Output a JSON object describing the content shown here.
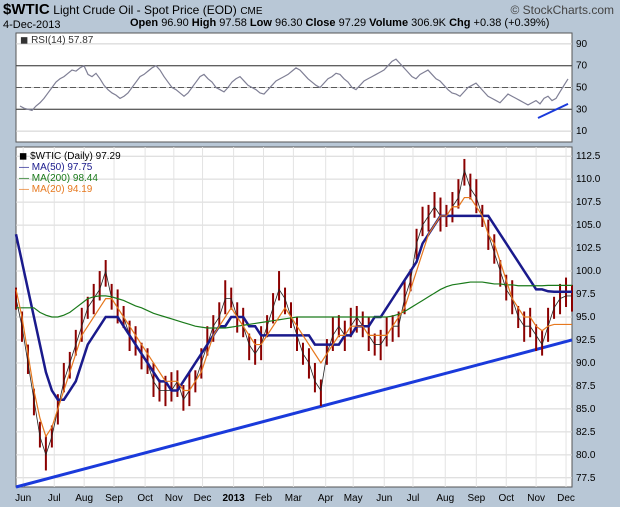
{
  "header": {
    "symbol": "$WTIC",
    "name": "Light Crude Oil - Spot Price (EOD)",
    "exchange": "CME",
    "date": "4-Dec-2013",
    "open_label": "Open",
    "open": "96.90",
    "high_label": "High",
    "high": "97.58",
    "low_label": "Low",
    "low": "96.30",
    "close_label": "Close",
    "close": "97.29",
    "volume_label": "Volume",
    "volume": "306.9K",
    "chg_label": "Chg",
    "chg": "+0.38 (+0.39%)",
    "watermark": "© StockCharts.com"
  },
  "colors": {
    "background": "#b8c7d6",
    "panel": "#ffffff",
    "rsi_line": "#7f7f95",
    "rsi_fill": "#6f8aa0",
    "price_bars": "#8b0000",
    "ma50": "#1a1a8c",
    "ma200": "#1a7a1a",
    "ma20": "#e6781e",
    "trendline": "#1a3adb"
  },
  "chart_data": [
    {
      "type": "line",
      "indicator": "RSI(14)",
      "legend": "RSI(14) 57.87",
      "last": 57.87,
      "ylim": [
        0,
        100
      ],
      "yticks": [
        10,
        30,
        50,
        70,
        90
      ],
      "reference_lines": [
        30,
        50,
        70
      ],
      "x": [
        0,
        4,
        8,
        12,
        16,
        20,
        24,
        28,
        32,
        36,
        40,
        44,
        48,
        52,
        56,
        60,
        64,
        68,
        72,
        76,
        80,
        84,
        88,
        92,
        96,
        100,
        104,
        108,
        112,
        116,
        120,
        124,
        128,
        132,
        136,
        140,
        144,
        148,
        152,
        156,
        160,
        164,
        168,
        172,
        176,
        180,
        184,
        188,
        192,
        196,
        200,
        204,
        208,
        212,
        216,
        220,
        224,
        228,
        232,
        236,
        240,
        244,
        248,
        252,
        256,
        260,
        264,
        268,
        272,
        276,
        280,
        284,
        288,
        292,
        296,
        300,
        304,
        308,
        312,
        316,
        320,
        324,
        328,
        332,
        336,
        340,
        344,
        348,
        352,
        356,
        360,
        364,
        368,
        372,
        376,
        380,
        384,
        388,
        392,
        396,
        400,
        404,
        408,
        412,
        416,
        420,
        424,
        428,
        432,
        436,
        440,
        444,
        448,
        452,
        456,
        460,
        464,
        468,
        472,
        476,
        480,
        484,
        488,
        492,
        496,
        500,
        504,
        508,
        512,
        516,
        520,
        524,
        528,
        532,
        536,
        540,
        544,
        548
      ],
      "values": [
        33,
        31,
        30,
        29,
        33,
        36,
        40,
        45,
        50,
        55,
        58,
        60,
        63,
        66,
        65,
        68,
        70,
        62,
        60,
        63,
        58,
        52,
        48,
        45,
        43,
        40,
        42,
        45,
        50,
        55,
        60,
        62,
        65,
        68,
        70,
        66,
        60,
        55,
        50,
        48,
        45,
        42,
        45,
        50,
        55,
        60,
        62,
        58,
        55,
        50,
        48,
        46,
        50,
        55,
        58,
        60,
        56,
        52,
        50,
        48,
        45,
        44,
        48,
        52,
        56,
        58,
        60,
        62,
        65,
        68,
        66,
        62,
        58,
        55,
        52,
        50,
        54,
        58,
        60,
        63,
        62,
        58,
        55,
        50,
        48,
        52,
        56,
        58,
        60,
        62,
        64,
        66,
        70,
        74,
        76,
        72,
        68,
        64,
        60,
        58,
        62,
        64,
        66,
        62,
        58,
        56,
        52,
        48,
        45,
        44,
        42,
        46,
        50,
        52,
        54,
        50,
        46,
        42,
        40,
        38,
        36,
        40,
        44,
        42,
        40,
        38,
        36,
        34,
        36,
        38,
        35,
        40,
        42,
        38,
        40,
        46,
        52,
        57.87
      ]
    },
    {
      "type": "line",
      "symbol": "$WTIC",
      "legend": "$WTIC (Daily) 97.29",
      "ylim": [
        76.5,
        113.5
      ],
      "yticks": [
        77.5,
        80.0,
        82.5,
        85.0,
        87.5,
        90.0,
        92.5,
        95.0,
        97.5,
        100.0,
        102.5,
        105.0,
        107.5,
        110.0,
        112.5
      ],
      "xtick_labels": [
        "Jun",
        "Jul",
        "Aug",
        "Sep",
        "Oct",
        "Nov",
        "Dec",
        "2013",
        "Feb",
        "Mar",
        "Apr",
        "May",
        "Jun",
        "Jul",
        "Aug",
        "Sep",
        "Oct",
        "Nov",
        "Dec"
      ],
      "xtick_positions": [
        6,
        32,
        57,
        82,
        108,
        132,
        156,
        182,
        207,
        232,
        259,
        282,
        308,
        332,
        359,
        385,
        410,
        435,
        460
      ],
      "x": [
        0,
        5,
        10,
        15,
        20,
        25,
        30,
        35,
        40,
        45,
        50,
        55,
        60,
        65,
        70,
        75,
        80,
        85,
        90,
        95,
        100,
        105,
        110,
        115,
        120,
        125,
        130,
        135,
        140,
        145,
        150,
        155,
        160,
        165,
        170,
        175,
        180,
        185,
        190,
        195,
        200,
        205,
        210,
        215,
        220,
        225,
        230,
        235,
        240,
        245,
        250,
        255,
        260,
        265,
        270,
        275,
        280,
        285,
        290,
        295,
        300,
        305,
        310,
        315,
        320,
        325,
        330,
        335,
        340,
        345,
        350,
        355,
        360,
        365,
        370,
        375,
        380,
        385,
        390,
        395,
        400,
        405,
        410,
        415,
        420,
        425,
        430,
        435,
        440,
        445,
        450,
        455,
        460,
        465
      ],
      "series": [
        {
          "name": "$WTIC (Daily)",
          "legend": "$WTIC (Daily) 97.29",
          "last": 97.29,
          "values": [
            97,
            94,
            90,
            86,
            82,
            80,
            82,
            85,
            88,
            90,
            92,
            94,
            96,
            97,
            98,
            100,
            97,
            96,
            95,
            93,
            92,
            91,
            90,
            88,
            87,
            87,
            87,
            88,
            86,
            87,
            88,
            90,
            92,
            94,
            95,
            97,
            97,
            95,
            94,
            92,
            91,
            92,
            94,
            96,
            98,
            97,
            95,
            93,
            91,
            90,
            88,
            87,
            91,
            93,
            94,
            93,
            94,
            95,
            94,
            93,
            92,
            92,
            93,
            94,
            94,
            97,
            99,
            103,
            105,
            106,
            107,
            106,
            106,
            107,
            108,
            111,
            109,
            108,
            106,
            104,
            102,
            100,
            98,
            97,
            95,
            94,
            94,
            93,
            92,
            94,
            96,
            97,
            97.29,
            97.29
          ]
        },
        {
          "name": "MA(50)",
          "legend": "MA(50) 97.75",
          "last": 97.75,
          "values": [
            104,
            101,
            98,
            95,
            92,
            89,
            87,
            86,
            86,
            87,
            88,
            90,
            92,
            93,
            94,
            95,
            95,
            95,
            94,
            93,
            92,
            91,
            90,
            89,
            88,
            88,
            87,
            87,
            88,
            89,
            90,
            91,
            92,
            93,
            94,
            94,
            95,
            95,
            95,
            94,
            94,
            93,
            93,
            93,
            93,
            93,
            93,
            93,
            93,
            93,
            92,
            92,
            92,
            92,
            92,
            93,
            93,
            94,
            94,
            94,
            95,
            95,
            96,
            97,
            98,
            99,
            100,
            101,
            103,
            104,
            105,
            106,
            106,
            106,
            106,
            106,
            106,
            106,
            106,
            106,
            105,
            104,
            103,
            102,
            101,
            100,
            99,
            98,
            98,
            97.8,
            97.75,
            97.75,
            97.75,
            97.75
          ]
        },
        {
          "name": "MA(200)",
          "legend": "MA(200) 98.44",
          "last": 98.44,
          "values": [
            96,
            96,
            96,
            96,
            95.5,
            95.2,
            95,
            95,
            95.2,
            95.5,
            96,
            96.5,
            97,
            97.2,
            97.3,
            97.3,
            97.2,
            97,
            96.8,
            96.5,
            96.2,
            96,
            95.7,
            95.4,
            95.2,
            95,
            94.8,
            94.6,
            94.4,
            94.2,
            94,
            93.9,
            93.8,
            93.8,
            93.8,
            93.8,
            93.9,
            94,
            94.1,
            94.2,
            94.3,
            94.4,
            94.5,
            94.6,
            94.7,
            94.8,
            94.9,
            95,
            95,
            95,
            95,
            95,
            95,
            95,
            95,
            95,
            95,
            95,
            95,
            95,
            95,
            95,
            95,
            95.1,
            95.3,
            95.6,
            96,
            96.4,
            96.8,
            97.2,
            97.6,
            98,
            98.3,
            98.5,
            98.6,
            98.7,
            98.8,
            98.8,
            98.8,
            98.7,
            98.6,
            98.6,
            98.5,
            98.5,
            98.4,
            98.4,
            98.4,
            98.4,
            98.4,
            98.44,
            98.44,
            98.44,
            98.44,
            98.44
          ]
        },
        {
          "name": "MA(20)",
          "legend": "MA(20) 94.19",
          "last": 94.19,
          "values": [
            98,
            95,
            91,
            87,
            84,
            82,
            83,
            85,
            87,
            89,
            91,
            93,
            94,
            95,
            96,
            97,
            97,
            96,
            95,
            94,
            93,
            92,
            91,
            90,
            89,
            88,
            88,
            88,
            87,
            87,
            88,
            89,
            91,
            93,
            94,
            95,
            96,
            95,
            94,
            93,
            92,
            92,
            93,
            94,
            95,
            96,
            95,
            94,
            93,
            92,
            91,
            90,
            91,
            92,
            93,
            93,
            94,
            94,
            94,
            93,
            93,
            93,
            93,
            94,
            95,
            96,
            98,
            100,
            102,
            104,
            105,
            106,
            106,
            107,
            107,
            108,
            108,
            107,
            106,
            104,
            103,
            101,
            99,
            97,
            96,
            95,
            95,
            94,
            93.5,
            94,
            94.19,
            94.19,
            94.19,
            94.19
          ]
        }
      ]
    }
  ]
}
